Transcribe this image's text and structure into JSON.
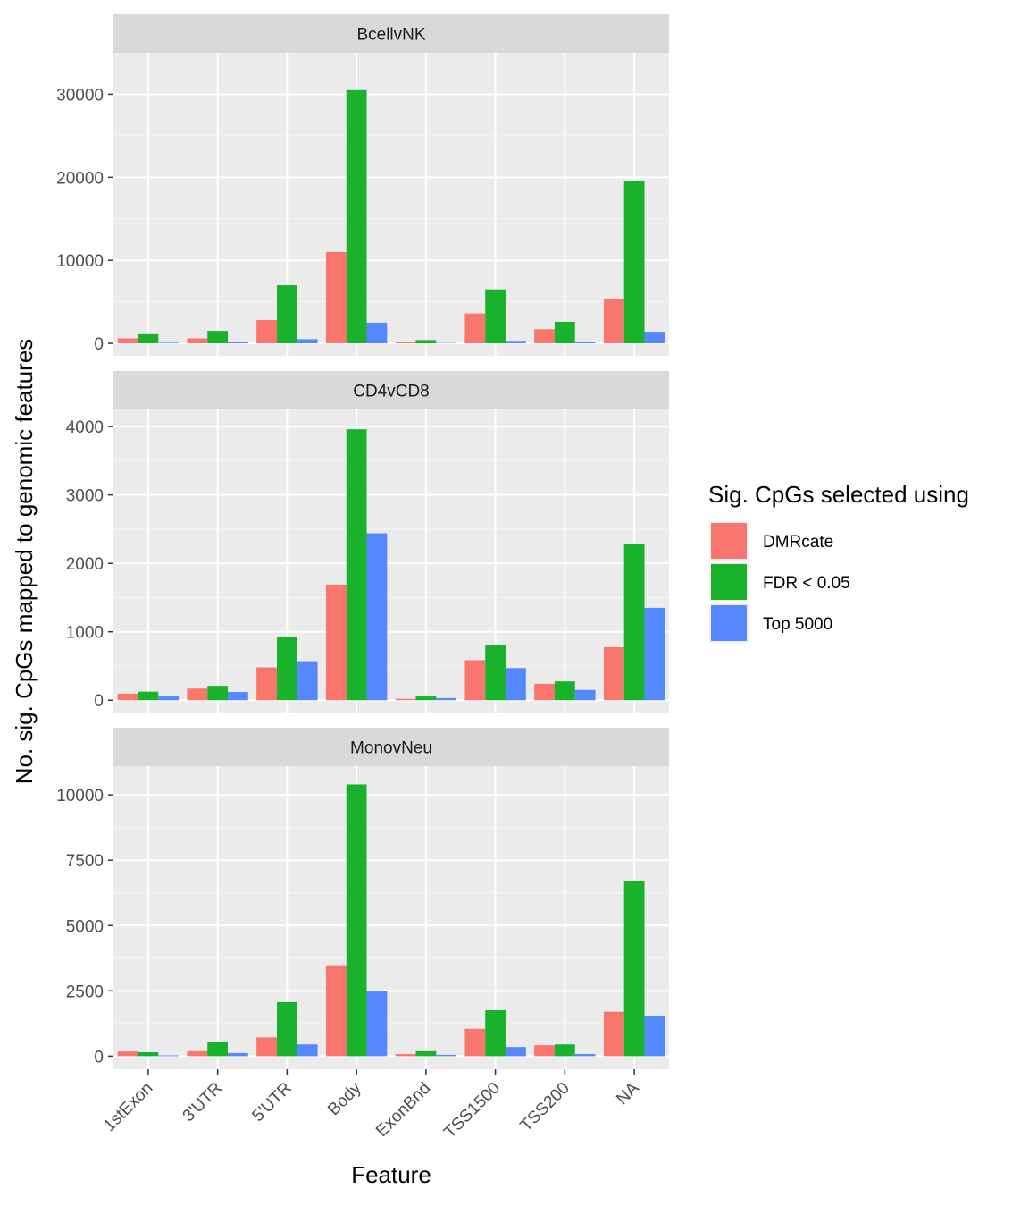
{
  "chart_data": {
    "type": "bar",
    "xlabel": "Feature",
    "ylabel": "No. sig. CpGs mapped to genomic features",
    "categories": [
      "1stExon",
      "3'UTR",
      "5'UTR",
      "Body",
      "ExonBnd",
      "TSS1500",
      "TSS200",
      "NA"
    ],
    "legend": {
      "title": "Sig. CpGs selected using",
      "position": "right",
      "entries": [
        "DMRcate",
        "FDR < 0.05",
        "Top 5000"
      ]
    },
    "colors": [
      "#F8766D",
      "#1AB22D",
      "#5588FF"
    ],
    "grid": true,
    "panels": [
      {
        "title": "BcellvNK",
        "ylim": [
          -1500,
          35000
        ],
        "yticks": [
          0,
          10000,
          20000,
          30000
        ],
        "series": [
          {
            "name": "DMRcate",
            "values": [
              600,
              600,
              2800,
              11000,
              150,
              3600,
              1700,
              5400
            ]
          },
          {
            "name": "FDR < 0.05",
            "values": [
              1100,
              1500,
              7000,
              30500,
              400,
              6500,
              2600,
              19600
            ]
          },
          {
            "name": "Top 5000",
            "values": [
              80,
              150,
              500,
              2500,
              50,
              300,
              150,
              1400
            ]
          }
        ]
      },
      {
        "title": "CD4vCD8",
        "ylim": [
          -180,
          4250
        ],
        "yticks": [
          0,
          1000,
          2000,
          3000,
          4000
        ],
        "series": [
          {
            "name": "DMRcate",
            "values": [
              95,
              170,
              480,
              1690,
              20,
              585,
              240,
              775
            ]
          },
          {
            "name": "FDR < 0.05",
            "values": [
              125,
              210,
              930,
              3960,
              55,
              800,
              275,
              2280
            ]
          },
          {
            "name": "Top 5000",
            "values": [
              55,
              120,
              570,
              2440,
              30,
              470,
              150,
              1350
            ]
          }
        ]
      },
      {
        "title": "MonovNeu",
        "ylim": [
          -500,
          11100
        ],
        "yticks": [
          0,
          2500,
          5000,
          7500,
          10000
        ],
        "series": [
          {
            "name": "DMRcate",
            "values": [
              180,
              190,
              720,
              3480,
              80,
              1050,
              420,
              1700
            ]
          },
          {
            "name": "FDR < 0.05",
            "values": [
              150,
              560,
              2070,
              10400,
              190,
              1760,
              450,
              6700
            ]
          },
          {
            "name": "Top 5000",
            "values": [
              30,
              120,
              450,
              2500,
              50,
              350,
              80,
              1540
            ]
          }
        ]
      }
    ]
  }
}
